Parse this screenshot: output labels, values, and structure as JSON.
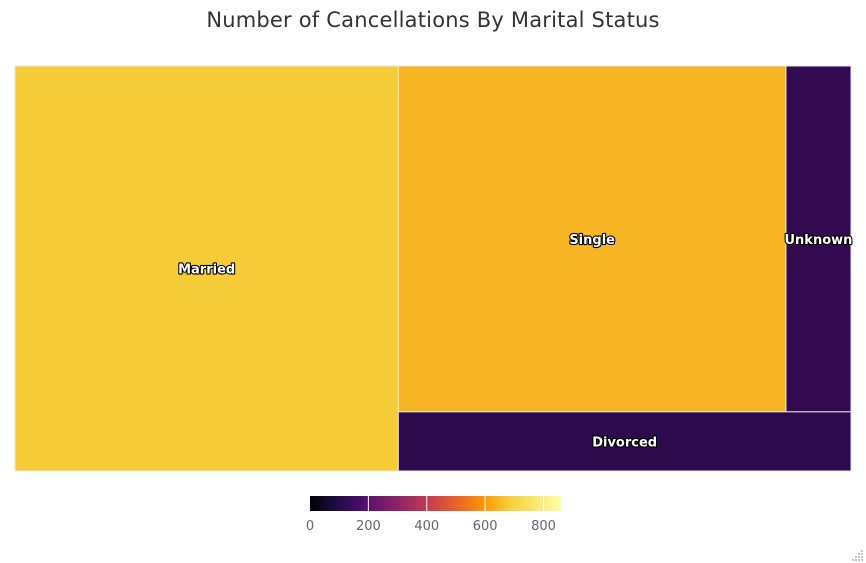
{
  "title": "Number of Cancellations By Marital Status",
  "chart_data": {
    "type": "treemap",
    "title": "Number of Cancellations By Marital Status",
    "categories": [
      "Married",
      "Single",
      "Unknown",
      "Divorced"
    ],
    "values": [
      835,
      721,
      121,
      144
    ],
    "colorscale": "inferno",
    "colorbar": {
      "range": [
        0,
        860
      ],
      "orientation": "horizontal",
      "placement": "bottom-center",
      "ticks": [
        0,
        200,
        400,
        600,
        800
      ],
      "tick_labels": [
        "0",
        "200",
        "400",
        "600",
        "800"
      ]
    },
    "tile_colors": {
      "Married": "#f5cc37",
      "Single": "#f7b423",
      "Unknown": "#330a4f",
      "Divorced": "#2d0a4c"
    }
  }
}
